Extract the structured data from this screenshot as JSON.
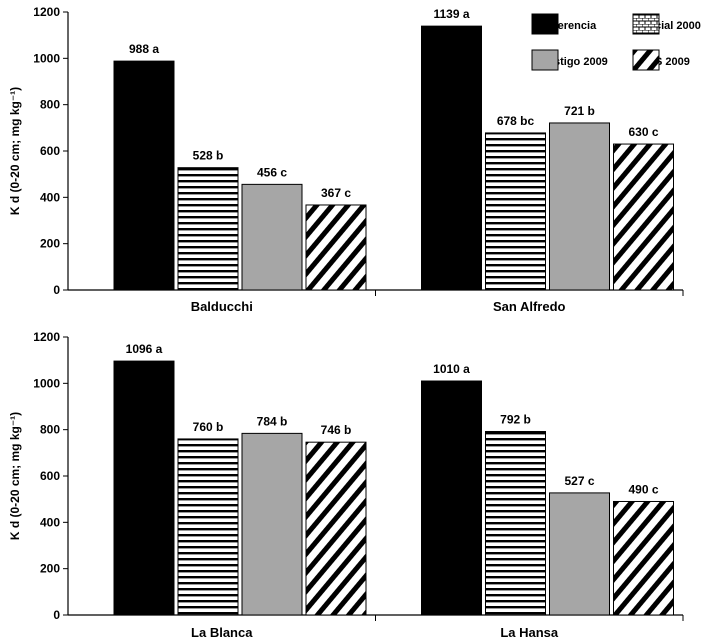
{
  "chart_data": {
    "type": "bar",
    "ylabel": "K d (0-20 cm; mg kg⁻¹)",
    "colors": {
      "s0": "#000000",
      "s2": "#a6a6a6",
      "stroke": "#000000"
    },
    "legend": {
      "placement": "top-right",
      "entries": [
        "ferencia",
        "cial 2000",
        "stigo 2009",
        "S 2009"
      ]
    },
    "panels": [
      {
        "ylim": [
          0,
          1200
        ],
        "yticks": [
          0,
          200,
          400,
          600,
          800,
          1000,
          1200
        ],
        "groups": [
          {
            "name": "Balducchi",
            "values": [
              988,
              528,
              456,
              367
            ],
            "labels": [
              "988 a",
              "528 b",
              "456 c",
              "367 c"
            ]
          },
          {
            "name": "San Alfredo",
            "values": [
              1139,
              678,
              721,
              630
            ],
            "labels": [
              "1139 a",
              "678 bc",
              "721 b",
              "630 c"
            ]
          }
        ]
      },
      {
        "ylim": [
          0,
          1200
        ],
        "yticks": [
          0,
          200,
          400,
          600,
          800,
          1000,
          1200
        ],
        "groups": [
          {
            "name": "La Blanca",
            "values": [
              1096,
              760,
              784,
              746
            ],
            "labels": [
              "1096 a",
              "760 b",
              "784 b",
              "746 b"
            ]
          },
          {
            "name": "La Hansa",
            "values": [
              1010,
              792,
              527,
              490
            ],
            "labels": [
              "1010 a",
              "792 b",
              "527 c",
              "490 c"
            ]
          }
        ]
      }
    ]
  }
}
